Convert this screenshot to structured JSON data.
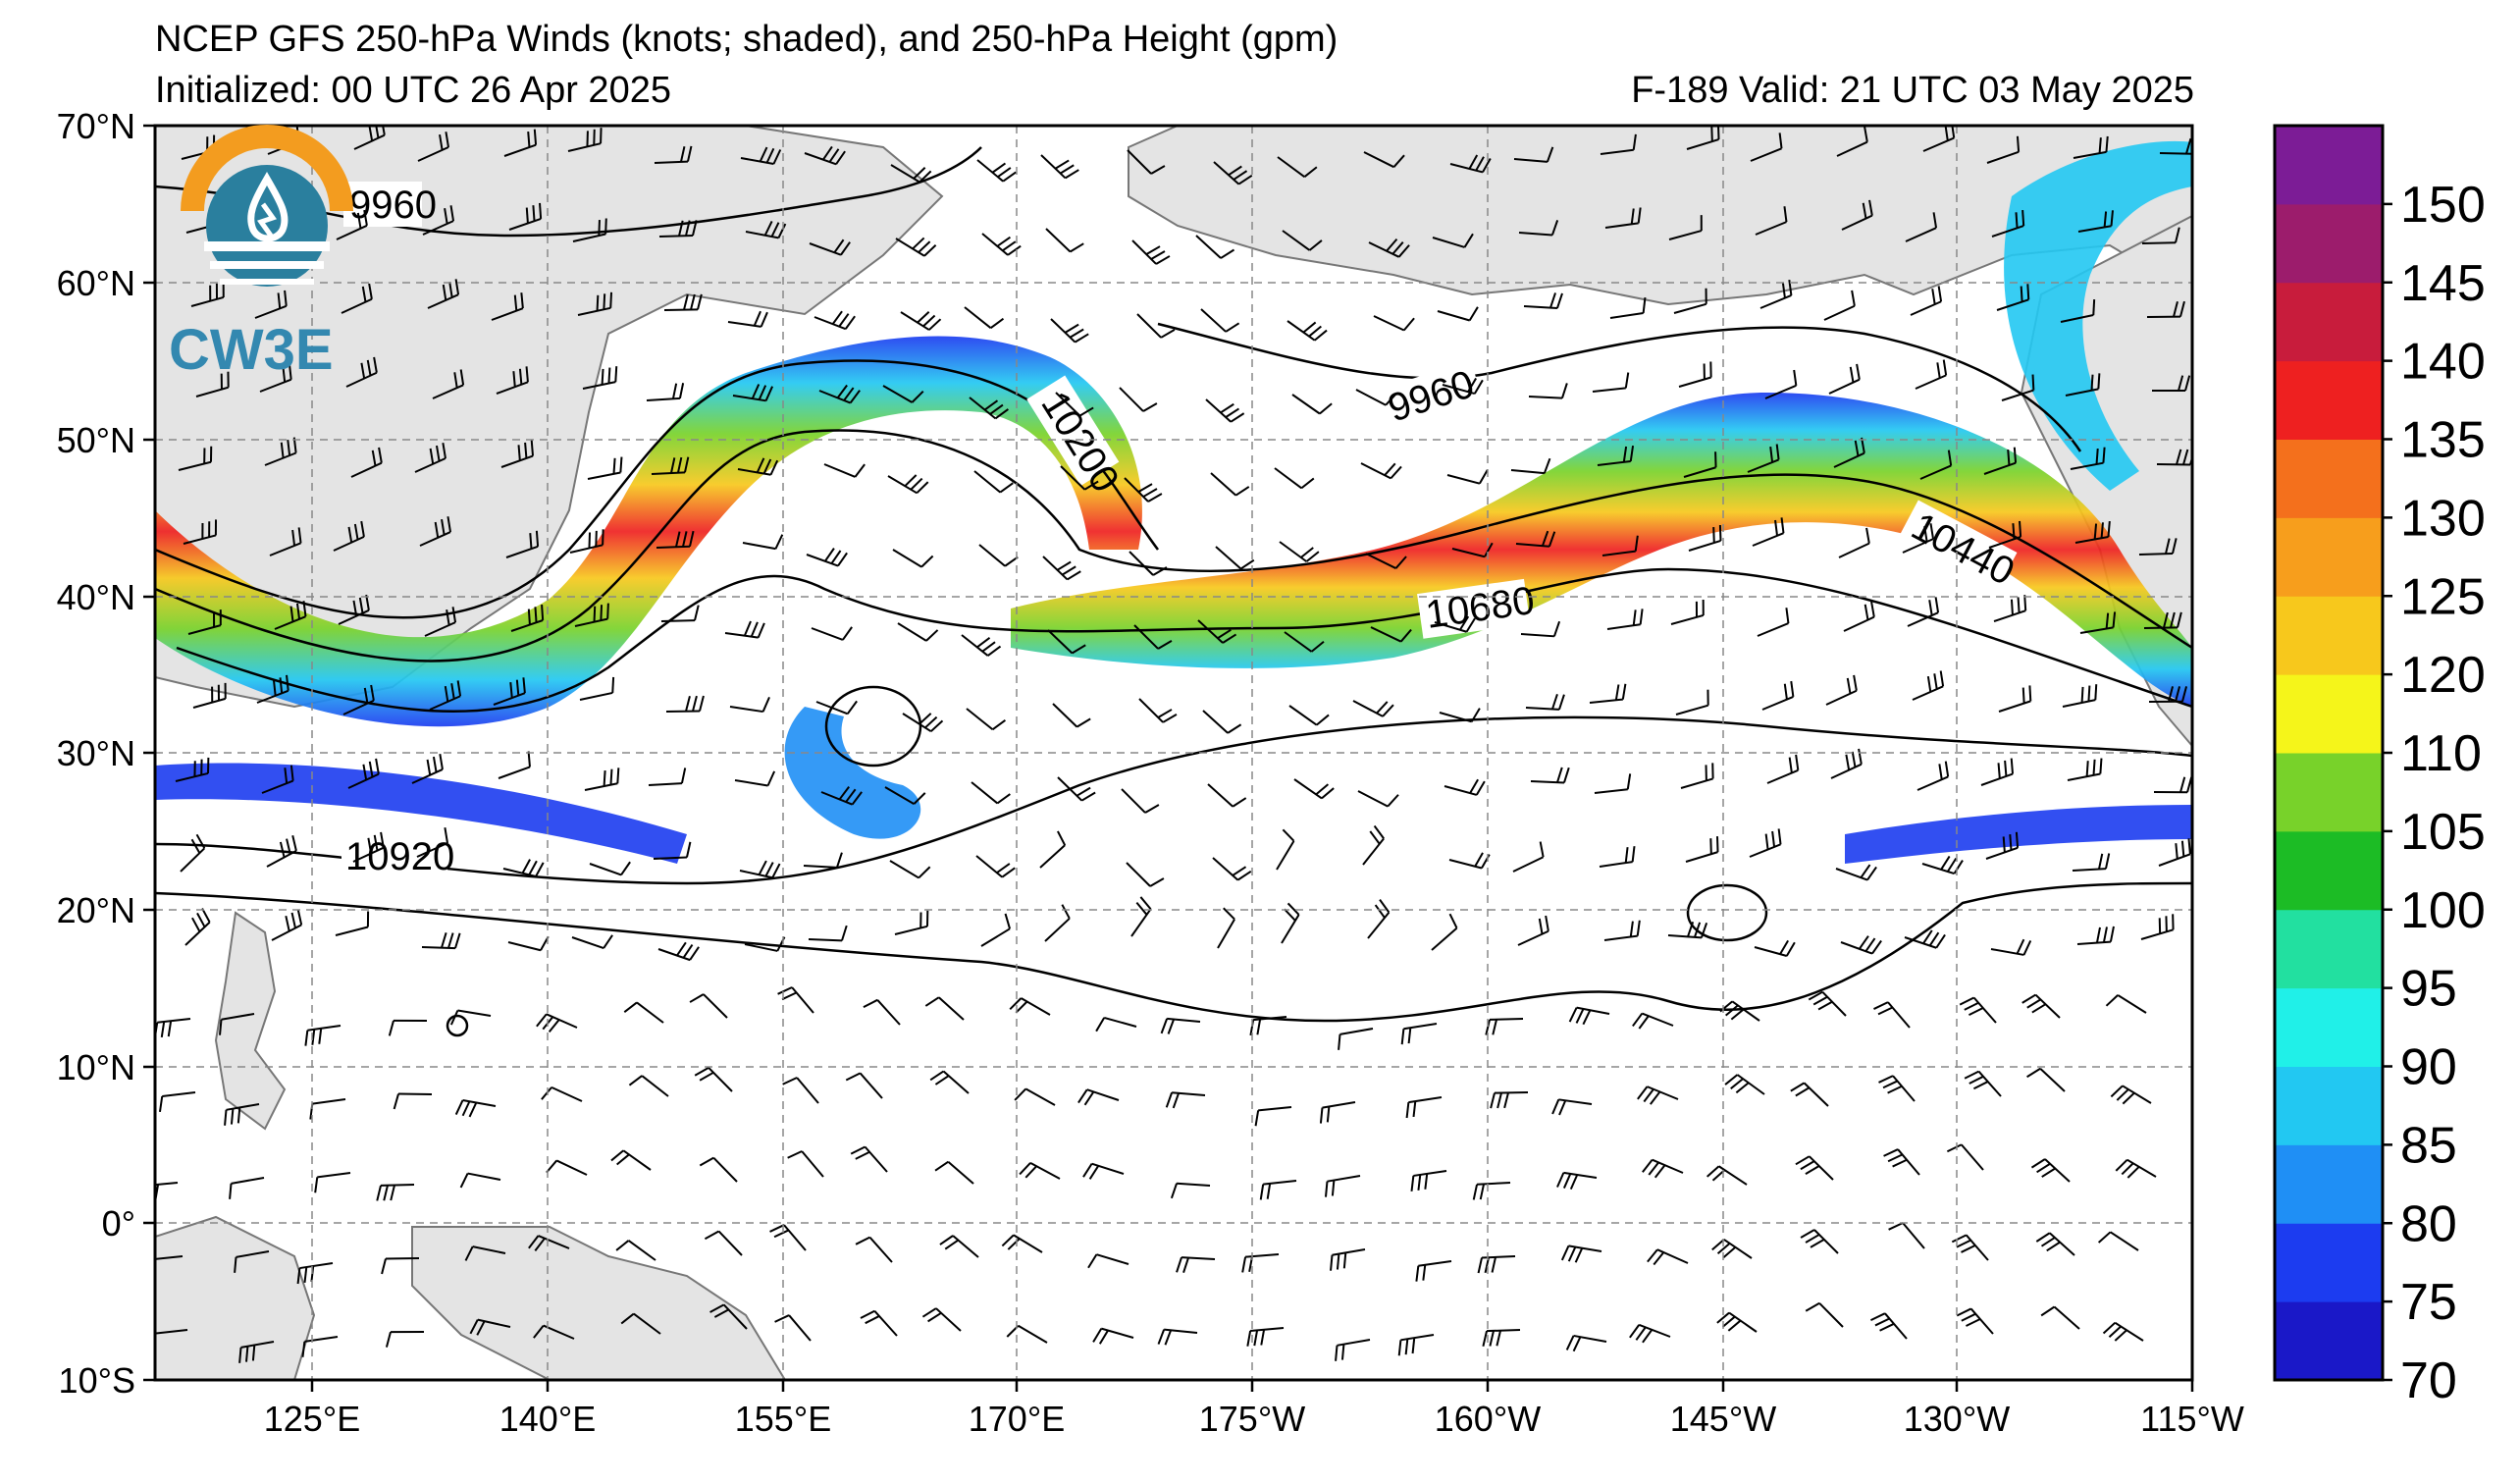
{
  "header": {
    "title": "NCEP GFS 250-hPa Winds (knots; shaded), and 250-hPa Height (gpm)",
    "initialized": "Initialized: 00 UTC 26 Apr 2025",
    "valid": "F-189  Valid: 21 UTC 03 May 2025"
  },
  "logo": {
    "text": "CW3E",
    "icon": "cw3e-logo-icon"
  },
  "map": {
    "lat_labels": [
      "70°N",
      "60°N",
      "50°N",
      "40°N",
      "30°N",
      "20°N",
      "10°N",
      "0°",
      "10°S"
    ],
    "lon_labels": [
      "125°E",
      "140°E",
      "155°E",
      "170°E",
      "175°W",
      "160°W",
      "145°W",
      "130°W",
      "115°W"
    ],
    "contour_labels": [
      "9960",
      "10200",
      "9960",
      "10680",
      "10440",
      "10920"
    ]
  },
  "colorbar": {
    "labels": [
      "70",
      "75",
      "80",
      "85",
      "90",
      "95",
      "100",
      "105",
      "110",
      "120",
      "125",
      "130",
      "135",
      "140",
      "145",
      "150"
    ],
    "colors": [
      "#1a18c8",
      "#1c3cf0",
      "#1f8ff5",
      "#22c8f2",
      "#20f0e8",
      "#22e0a0",
      "#1cbc25",
      "#78d22a",
      "#f5f51a",
      "#f7c81c",
      "#f79e1c",
      "#f4701c",
      "#ee2020",
      "#c81c3c",
      "#9c1c6c",
      "#7c1c96"
    ]
  }
}
